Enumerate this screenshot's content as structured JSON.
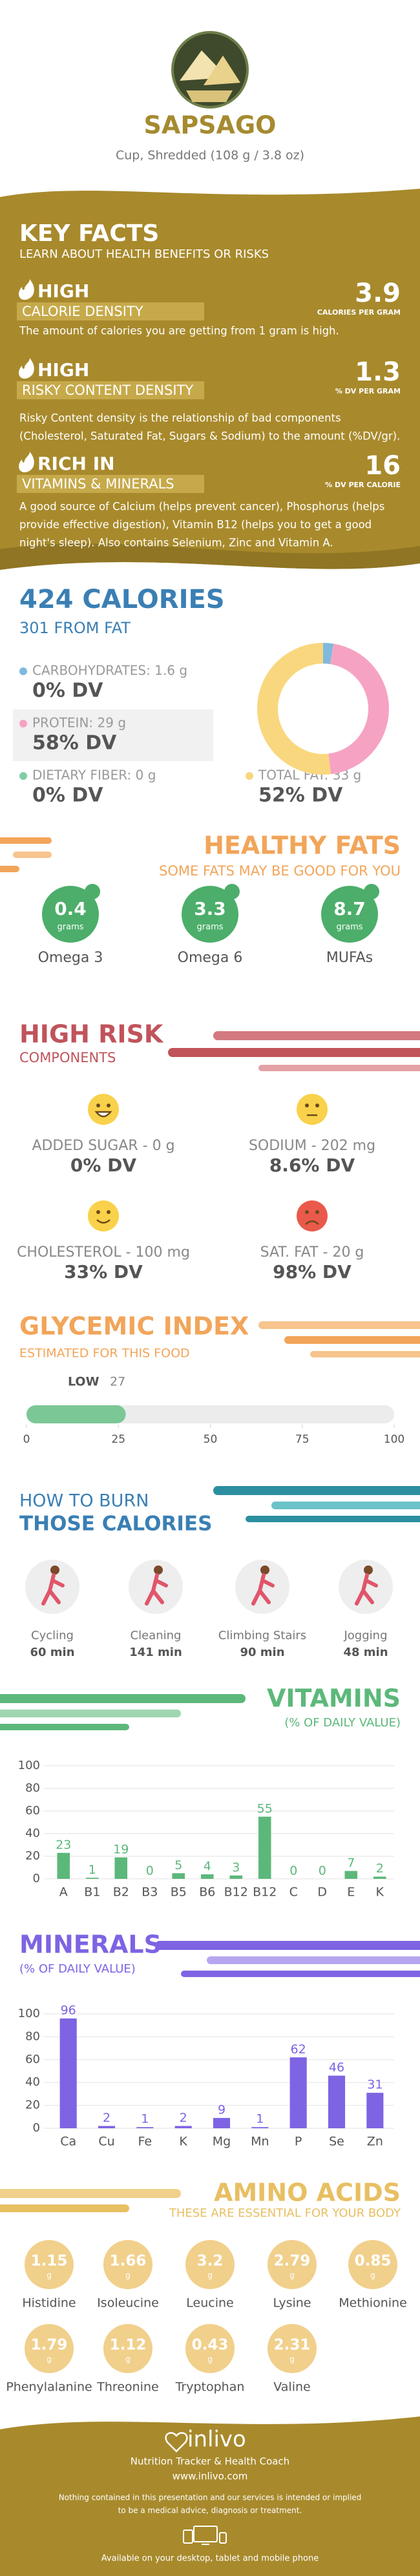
{
  "header": {
    "title": "SAPSAGO",
    "subtitle": "Cup, Shredded (108 g / 3.8 oz)"
  },
  "key_facts": {
    "title": "KEY FACTS",
    "subtitle": "LEARN ABOUT HEALTH BENEFITS OR RISKS",
    "items": [
      {
        "level": "HIGH",
        "name": "CALORIE DENSITY",
        "value": 3.9,
        "unit": "CALORIES PER GRAM",
        "description": [
          "The amount of calories you are getting from 1 gram is high."
        ]
      },
      {
        "level": "HIGH",
        "name": "RISKY CONTENT DENSITY",
        "value": 1.3,
        "unit": "% DV PER GRAM",
        "description": [
          "Risky Content density is the relationship of bad components",
          "(Cholesterol, Saturated Fat, Sugars & Sodium) to the amount (%DV/gr)."
        ]
      },
      {
        "level": "RICH  IN",
        "name": "VITAMINS & MINERALS",
        "value": 16,
        "unit": "% DV PER CALORIE",
        "description": [
          "A good source of Calcium (helps prevent cancer), Phosphorus (helps",
          "provide effective digestion), Vitamin B12 (helps you to get a good",
          "night's sleep). Also contains Selenium, Zinc and Vitamin A."
        ]
      }
    ]
  },
  "calories": {
    "title": "424 CALORIES",
    "subtitle": "301 FROM FAT",
    "nutrients": [
      {
        "label": "CARBOHYDRATES: 1.6 g",
        "dv": "0% DV",
        "value": 1.6,
        "color": "#7fb9de"
      },
      {
        "label": "PROTEIN: 29 g",
        "dv": "58% DV",
        "value": 29,
        "color": "#f6a3c3"
      },
      {
        "label": "DIETARY FIBER: 0 g",
        "dv": "0% DV",
        "value": 0,
        "color": "#7fcfa3"
      },
      {
        "label": "TOTAL FAT: 33 g",
        "dv": "52% DV",
        "value": 33,
        "color": "#f9d77e"
      }
    ]
  },
  "healthy_fats": {
    "title": "HEALTHY FATS",
    "subtitle": "SOME FATS MAY BE GOOD FOR YOU",
    "unit": "grams",
    "items": [
      {
        "name": "Omega 3",
        "value": 0.4
      },
      {
        "name": "Omega 6",
        "value": 3.3
      },
      {
        "name": "MUFAs",
        "value": 8.7
      }
    ]
  },
  "high_risk": {
    "title": "HIGH RISK",
    "subtitle": "COMPONENTS",
    "items": [
      {
        "label": "ADDED SUGAR - 0 g",
        "dv": "0% DV",
        "mood": "happy"
      },
      {
        "label": "SODIUM - 202 mg",
        "dv": "8.6% DV",
        "mood": "neutral"
      },
      {
        "label": "CHOLESTEROL - 100 mg",
        "dv": "33% DV",
        "mood": "smile"
      },
      {
        "label": "SAT. FAT - 20 g",
        "dv": "98% DV",
        "mood": "sad"
      }
    ]
  },
  "glycemic": {
    "title": "GLYCEMIC INDEX",
    "subtitle": "ESTIMATED FOR THIS FOOD",
    "level": "LOW",
    "value": 27,
    "xlim": [
      0,
      100
    ],
    "xticks": [
      0,
      25,
      50,
      75,
      100
    ]
  },
  "burn": {
    "title_line1": "HOW TO BURN",
    "title_line2": "THOSE CALORIES",
    "activities": [
      {
        "name": "Cycling",
        "time": "60 min"
      },
      {
        "name": "Cleaning",
        "time": "141 min"
      },
      {
        "name": "Climbing Stairs",
        "time": "90 min"
      },
      {
        "name": "Jogging",
        "time": "48 min"
      }
    ]
  },
  "chart_data": [
    {
      "type": "bar",
      "title": "VITAMINS",
      "subtitle": "(% OF DAILY VALUE)",
      "color": "#5cb87a",
      "categories": [
        "A",
        "B1",
        "B2",
        "B3",
        "B5",
        "B6",
        "B12",
        "B12",
        "C",
        "D",
        "E",
        "K"
      ],
      "values": [
        23,
        1,
        19,
        0,
        5,
        4,
        3,
        55,
        0,
        0,
        7,
        2
      ],
      "ylim": [
        0,
        100
      ],
      "yticks": [
        0,
        20,
        40,
        60,
        80,
        100
      ],
      "grid": true
    },
    {
      "type": "bar",
      "title": "MINERALS",
      "subtitle": "(% OF DAILY VALUE)",
      "color": "#7e63e3",
      "categories": [
        "Ca",
        "Cu",
        "Fe",
        "K",
        "Mg",
        "Mn",
        "P",
        "Se",
        "Zn"
      ],
      "values": [
        96,
        2,
        1,
        2,
        9,
        1,
        62,
        46,
        31
      ],
      "ylim": [
        0,
        100
      ],
      "yticks": [
        0,
        20,
        40,
        60,
        80,
        100
      ],
      "grid": true
    }
  ],
  "amino_acids": {
    "title": "AMINO ACIDS",
    "subtitle": "THESE ARE ESSENTIAL FOR YOUR BODY",
    "unit": "g",
    "items": [
      {
        "name": "Histidine",
        "value": 1.15
      },
      {
        "name": "Isoleucine",
        "value": 1.66
      },
      {
        "name": "Leucine",
        "value": 3.2
      },
      {
        "name": "Lysine",
        "value": 2.79
      },
      {
        "name": "Methionine",
        "value": 0.85
      },
      {
        "name": "Phenylalanine",
        "value": 1.79
      },
      {
        "name": "Threonine",
        "value": 1.12
      },
      {
        "name": "Tryptophan",
        "value": 0.43
      },
      {
        "name": "Valine",
        "value": 2.31
      }
    ]
  },
  "footer": {
    "brand": "inlivo",
    "tagline": "Nutrition Tracker & Health Coach",
    "url": "www.inlivo.com",
    "disclaimer": [
      "Nothing contained in this presentation and our services is intended or implied",
      "to be a medical advice, diagnosis or treatment."
    ],
    "available": "Available on your desktop, tablet and mobile phone"
  }
}
